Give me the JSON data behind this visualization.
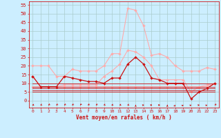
{
  "xlabel": "Vent moyen/en rafales ( km/h )",
  "background_color": "#cceeff",
  "grid_color": "#aacccc",
  "x_ticks": [
    0,
    1,
    2,
    3,
    4,
    5,
    6,
    7,
    8,
    9,
    10,
    11,
    12,
    13,
    14,
    15,
    16,
    17,
    18,
    19,
    20,
    21,
    22,
    23
  ],
  "y_ticks": [
    0,
    5,
    10,
    15,
    20,
    25,
    30,
    35,
    40,
    45,
    50,
    55
  ],
  "ylim": [
    -4,
    57
  ],
  "xlim": [
    -0.5,
    23.5
  ],
  "series": [
    {
      "name": "rafales_light1",
      "color": "#ffaaaa",
      "linewidth": 0.8,
      "marker": "D",
      "markersize": 2.0,
      "values": [
        20,
        20,
        20,
        14,
        14,
        18,
        17,
        17,
        17,
        20,
        27,
        27,
        53,
        52,
        43,
        26,
        27,
        25,
        20,
        17,
        17,
        17,
        19,
        18
      ]
    },
    {
      "name": "moyen_light1",
      "color": "#ffaaaa",
      "linewidth": 0.8,
      "marker": "D",
      "markersize": 2.0,
      "values": [
        14,
        8,
        8,
        8,
        9,
        9,
        9,
        9,
        9,
        14,
        17,
        21,
        29,
        28,
        25,
        20,
        12,
        12,
        12,
        12,
        5,
        8,
        8,
        10
      ]
    },
    {
      "name": "flat_light",
      "color": "#ffaaaa",
      "linewidth": 0.7,
      "marker": "D",
      "markersize": 1.8,
      "values": [
        8,
        8,
        8,
        8,
        8,
        8,
        8,
        8,
        8,
        8,
        8,
        8,
        8,
        8,
        8,
        8,
        8,
        8,
        8,
        8,
        8,
        8,
        9,
        10
      ]
    },
    {
      "name": "main_dark",
      "color": "#cc1111",
      "linewidth": 0.9,
      "marker": "D",
      "markersize": 2.0,
      "values": [
        14,
        8,
        8,
        8,
        14,
        13,
        12,
        11,
        11,
        10,
        13,
        13,
        21,
        25,
        21,
        13,
        12,
        10,
        10,
        10,
        1,
        5,
        7,
        10
      ]
    },
    {
      "name": "flat_dark1",
      "color": "#cc1111",
      "linewidth": 0.6,
      "marker": null,
      "markersize": 0,
      "values": [
        10,
        10,
        10,
        10,
        10,
        10,
        10,
        10,
        10,
        10,
        10,
        10,
        10,
        10,
        10,
        10,
        10,
        10,
        10,
        10,
        10,
        10,
        10,
        10
      ]
    },
    {
      "name": "flat_dark2",
      "color": "#cc1111",
      "linewidth": 0.6,
      "marker": null,
      "markersize": 0,
      "values": [
        8,
        8,
        8,
        8,
        8,
        8,
        8,
        8,
        8,
        8,
        8,
        8,
        8,
        8,
        8,
        8,
        8,
        8,
        8,
        8,
        8,
        8,
        8,
        8
      ]
    },
    {
      "name": "flat_dark3",
      "color": "#cc1111",
      "linewidth": 0.6,
      "marker": null,
      "markersize": 0,
      "values": [
        7,
        7,
        7,
        7,
        7,
        7,
        7,
        7,
        7,
        7,
        7,
        7,
        7,
        7,
        7,
        7,
        7,
        7,
        7,
        7,
        7,
        7,
        7,
        7
      ]
    },
    {
      "name": "flat_dark4",
      "color": "#cc1111",
      "linewidth": 0.6,
      "marker": null,
      "markersize": 0,
      "values": [
        6,
        6,
        6,
        6,
        6,
        6,
        6,
        6,
        6,
        6,
        6,
        6,
        6,
        6,
        6,
        6,
        6,
        6,
        6,
        6,
        6,
        6,
        6,
        6
      ]
    },
    {
      "name": "flat_dark5",
      "color": "#cc1111",
      "linewidth": 0.6,
      "marker": null,
      "markersize": 0,
      "values": [
        5,
        5,
        5,
        5,
        5,
        5,
        5,
        5,
        5,
        5,
        5,
        5,
        5,
        5,
        5,
        5,
        5,
        5,
        5,
        5,
        5,
        5,
        5,
        5
      ]
    }
  ],
  "arrow_angles": [
    225,
    210,
    200,
    200,
    200,
    200,
    195,
    200,
    200,
    210,
    220,
    220,
    215,
    0,
    45,
    60,
    60,
    0,
    10,
    20,
    30,
    45,
    30,
    200
  ],
  "xlabel_color": "#cc1111",
  "tick_color": "#cc1111",
  "spine_color": "#cc1111"
}
